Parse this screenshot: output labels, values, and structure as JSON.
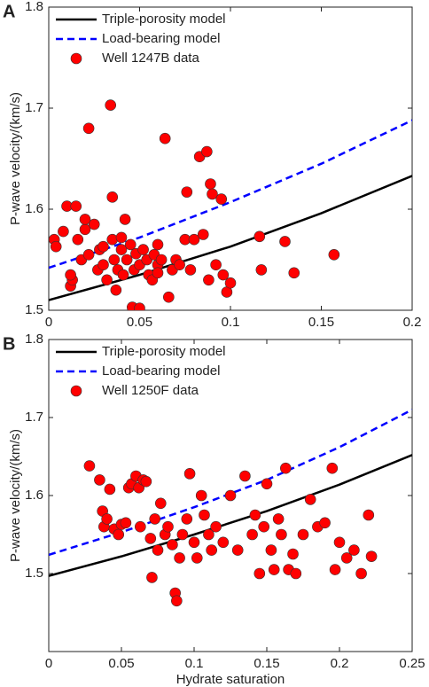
{
  "chart_data": [
    {
      "type": "scatter",
      "label": "A",
      "ylabel": "P-wave velocity/(km/s)",
      "xlim": [
        0,
        0.2
      ],
      "xticks": [
        0,
        0.05,
        0.1,
        0.15,
        0.2
      ],
      "ylim": [
        1.5,
        1.8
      ],
      "yticks": [
        1.5,
        1.6,
        1.7,
        1.8
      ],
      "legend": "upper left",
      "series": [
        {
          "name": "Triple-porosity model",
          "color": "#000000",
          "kind": "line",
          "dashed": false,
          "x": [
            0,
            0.05,
            0.1,
            0.15,
            0.2
          ],
          "values": [
            1.51,
            1.535,
            1.563,
            1.596,
            1.633
          ]
        },
        {
          "name": "Load-bearing model",
          "color": "#0000ff",
          "kind": "line",
          "dashed": true,
          "x": [
            0,
            0.05,
            0.1,
            0.15,
            0.2
          ],
          "values": [
            1.542,
            1.572,
            1.607,
            1.645,
            1.688
          ]
        },
        {
          "name": "Well 1247B data",
          "color": "#ff0000",
          "kind": "marker",
          "x": [
            0.003,
            0.004,
            0.008,
            0.01,
            0.012,
            0.013,
            0.015,
            0.016,
            0.018,
            0.02,
            0.022,
            0.022,
            0.025,
            0.027,
            0.028,
            0.03,
            0.032,
            0.034,
            0.035,
            0.035,
            0.036,
            0.037,
            0.038,
            0.04,
            0.041,
            0.042,
            0.043,
            0.045,
            0.046,
            0.047,
            0.048,
            0.05,
            0.05,
            0.052,
            0.054,
            0.055,
            0.057,
            0.058,
            0.06,
            0.062,
            0.064,
            0.066,
            0.068,
            0.07,
            0.072,
            0.075,
            0.078,
            0.08,
            0.083,
            0.085,
            0.087,
            0.088,
            0.089,
            0.09,
            0.092,
            0.095,
            0.096,
            0.098,
            0.1,
            0.116,
            0.117,
            0.13,
            0.135,
            0.157,
            0.012,
            0.02,
            0.03,
            0.06,
            0.04,
            0.076,
            0.06
          ],
          "values": [
            1.57,
            1.563,
            1.578,
            1.603,
            1.524,
            1.53,
            1.603,
            1.57,
            1.55,
            1.58,
            1.68,
            1.555,
            1.585,
            1.54,
            1.56,
            1.545,
            1.53,
            1.703,
            1.612,
            1.57,
            1.55,
            1.52,
            1.54,
            1.56,
            1.535,
            1.59,
            1.55,
            1.565,
            1.503,
            1.54,
            1.556,
            1.502,
            1.545,
            1.56,
            1.55,
            1.535,
            1.53,
            1.555,
            1.545,
            1.55,
            1.67,
            1.513,
            1.54,
            1.55,
            1.545,
            1.57,
            1.54,
            1.57,
            1.652,
            1.575,
            1.657,
            1.53,
            1.625,
            1.615,
            1.545,
            1.61,
            1.535,
            1.518,
            1.527,
            1.573,
            1.54,
            1.568,
            1.537,
            1.555,
            1.535,
            1.59,
            1.563,
            1.565,
            1.572,
            1.617,
            1.537
          ]
        }
      ]
    },
    {
      "type": "scatter",
      "label": "B",
      "ylabel": "P-wave velocity/(km/s)",
      "xlabel": "Hydrate saturation",
      "xlim": [
        0,
        0.25
      ],
      "xticks": [
        0,
        0.05,
        0.1,
        0.15,
        0.2,
        0.25
      ],
      "ylim": [
        1.4,
        1.8
      ],
      "yticks": [
        1.5,
        1.6,
        1.7,
        1.8
      ],
      "legend": "upper left",
      "series": [
        {
          "name": "Triple-porosity model",
          "color": "#000000",
          "kind": "line",
          "dashed": false,
          "x": [
            0,
            0.05,
            0.1,
            0.15,
            0.2,
            0.25
          ],
          "values": [
            1.497,
            1.522,
            1.55,
            1.58,
            1.614,
            1.652
          ]
        },
        {
          "name": "Load-bearing model",
          "color": "#0000ff",
          "kind": "line",
          "dashed": true,
          "x": [
            0,
            0.05,
            0.1,
            0.15,
            0.2,
            0.25
          ],
          "values": [
            1.524,
            1.553,
            1.585,
            1.62,
            1.662,
            1.71
          ]
        },
        {
          "name": "Well 1250F data",
          "color": "#ff0000",
          "kind": "marker",
          "x": [
            0.028,
            0.035,
            0.037,
            0.038,
            0.04,
            0.042,
            0.045,
            0.048,
            0.05,
            0.053,
            0.055,
            0.057,
            0.06,
            0.062,
            0.063,
            0.065,
            0.067,
            0.07,
            0.071,
            0.073,
            0.075,
            0.077,
            0.08,
            0.082,
            0.085,
            0.087,
            0.088,
            0.09,
            0.092,
            0.095,
            0.097,
            0.1,
            0.102,
            0.105,
            0.107,
            0.11,
            0.112,
            0.115,
            0.12,
            0.125,
            0.13,
            0.135,
            0.14,
            0.142,
            0.145,
            0.148,
            0.15,
            0.153,
            0.155,
            0.158,
            0.16,
            0.163,
            0.165,
            0.168,
            0.17,
            0.175,
            0.18,
            0.185,
            0.19,
            0.195,
            0.197,
            0.2,
            0.205,
            0.21,
            0.215,
            0.22,
            0.222
          ],
          "values": [
            1.638,
            1.62,
            1.58,
            1.56,
            1.57,
            1.608,
            1.557,
            1.55,
            1.563,
            1.565,
            1.61,
            1.615,
            1.625,
            1.61,
            1.56,
            1.62,
            1.618,
            1.545,
            1.495,
            1.57,
            1.53,
            1.59,
            1.55,
            1.56,
            1.537,
            1.475,
            1.465,
            1.52,
            1.55,
            1.57,
            1.628,
            1.54,
            1.52,
            1.6,
            1.575,
            1.55,
            1.53,
            1.56,
            1.54,
            1.6,
            1.53,
            1.625,
            1.55,
            1.575,
            1.5,
            1.56,
            1.615,
            1.53,
            1.505,
            1.57,
            1.55,
            1.635,
            1.505,
            1.525,
            1.5,
            1.55,
            1.595,
            1.56,
            1.565,
            1.635,
            1.505,
            1.54,
            1.52,
            1.53,
            1.5,
            1.575,
            1.522
          ]
        }
      ]
    }
  ]
}
